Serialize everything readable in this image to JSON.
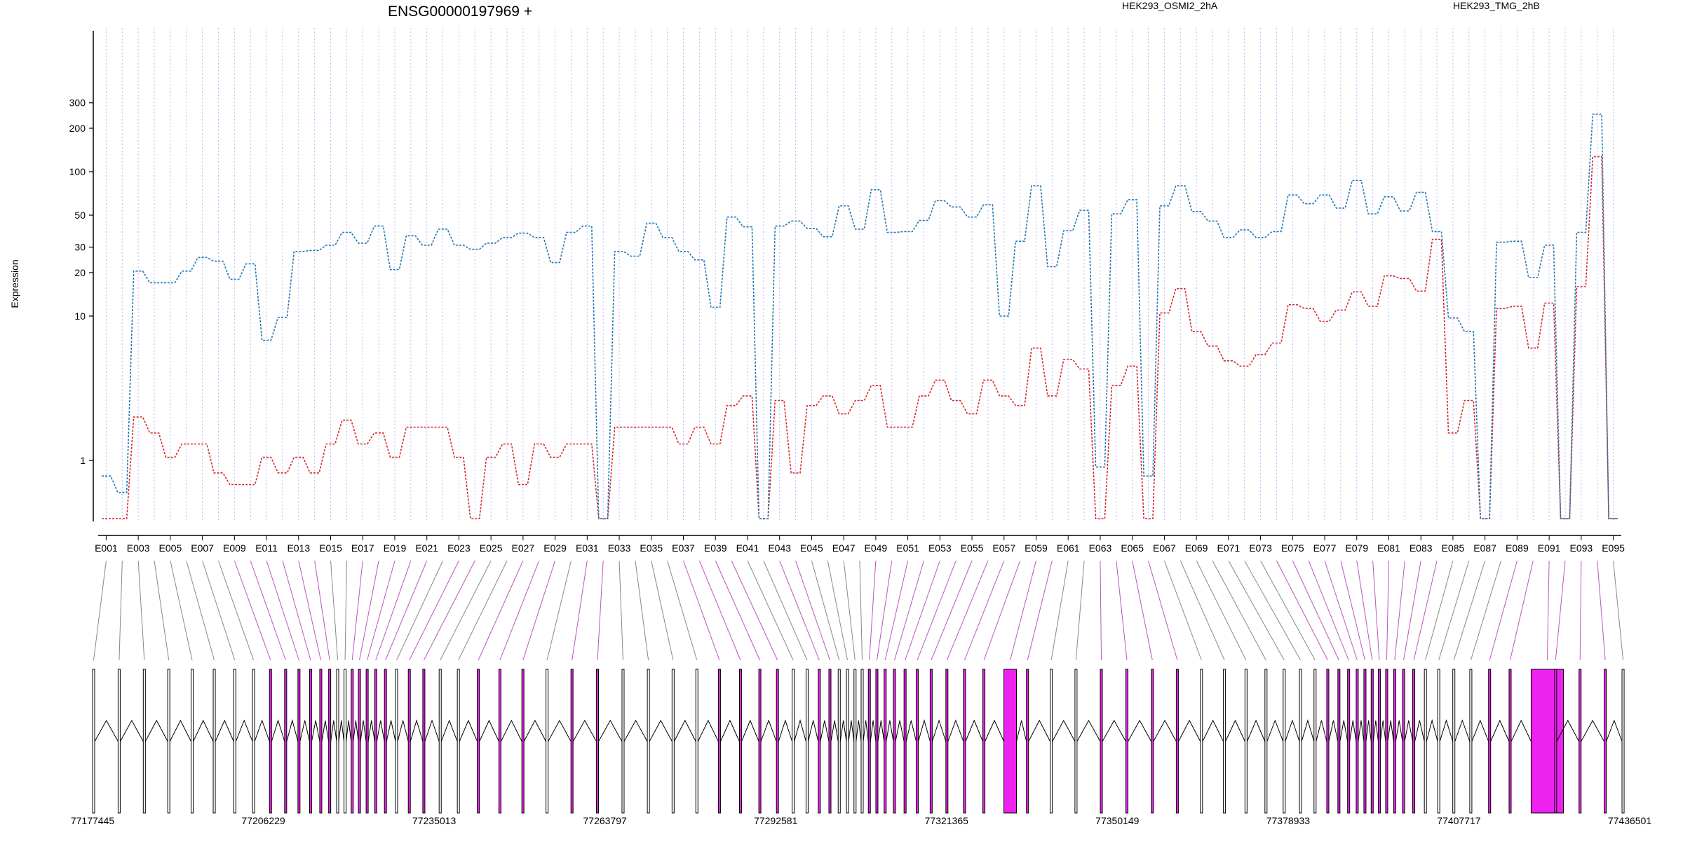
{
  "chart_data": {
    "type": "line",
    "title": "ENSG00000197969 +",
    "ylabel": "Expression",
    "xlabel": "",
    "y_scale": "log",
    "y_tick_labels": [
      "1",
      "10",
      "20",
      "30",
      "50",
      "100",
      "200",
      "300"
    ],
    "grid": "vertical dotted lines per exon bin",
    "legend_placement": "top",
    "colors": {
      "HEK293_OSMI2_2hA": "#d62728",
      "HEK293_TMG_2hB": "#1f77b4",
      "grid": "#b8b8ff",
      "highlight_exon": "#ee22ee",
      "plain_exon": "#ffffff",
      "connector_plain": "#888888",
      "connector_highlight": "#bb55bb"
    },
    "categories": [
      "E001",
      "E002",
      "E003",
      "E004",
      "E005",
      "E006",
      "E007",
      "E008",
      "E009",
      "E010",
      "E011",
      "E012",
      "E013",
      "E014",
      "E015",
      "E016",
      "E017",
      "E018",
      "E019",
      "E020",
      "E021",
      "E022",
      "E023",
      "E024",
      "E025",
      "E026",
      "E027",
      "E028",
      "E029",
      "E030",
      "E031",
      "E032",
      "E033",
      "E034",
      "E035",
      "E036",
      "E037",
      "E038",
      "E039",
      "E040",
      "E041",
      "E042",
      "E043",
      "E044",
      "E045",
      "E046",
      "E047",
      "E048",
      "E049",
      "E050",
      "E051",
      "E052",
      "E053",
      "E054",
      "E055",
      "E056",
      "E057",
      "E058",
      "E059",
      "E060",
      "E061",
      "E062",
      "E063",
      "E064",
      "E065",
      "E066",
      "E067",
      "E068",
      "E069",
      "E070",
      "E071",
      "E072",
      "E073",
      "E074",
      "E075",
      "E076",
      "E077",
      "E078",
      "E079",
      "E080",
      "E081",
      "E082",
      "E083",
      "E084",
      "E085",
      "E086",
      "E087",
      "E088",
      "E089",
      "E090",
      "E091",
      "E092",
      "E093",
      "E094",
      "E095"
    ],
    "x_tick_labels": [
      "E001",
      "E003",
      "E005",
      "E007",
      "E009",
      "E011",
      "E013",
      "E015",
      "E017",
      "E019",
      "E021",
      "E023",
      "E025",
      "E027",
      "E029",
      "E031",
      "E033",
      "E035",
      "E037",
      "E039",
      "E041",
      "E043",
      "E045",
      "E047",
      "E049",
      "E051",
      "E053",
      "E055",
      "E057",
      "E059",
      "E061",
      "E063",
      "E065",
      "E067",
      "E069",
      "E071",
      "E073",
      "E075",
      "E077",
      "E079",
      "E081",
      "E083",
      "E085",
      "E087",
      "E089",
      "E091",
      "E093",
      "E095"
    ],
    "series": [
      {
        "name": "HEK293_OSMI2_2hA",
        "values": [
          0.4,
          0.4,
          2.0,
          1.55,
          1.05,
          1.3,
          1.3,
          0.82,
          0.68,
          0.68,
          1.05,
          0.82,
          1.05,
          0.82,
          1.3,
          1.9,
          1.3,
          1.55,
          1.05,
          1.7,
          1.7,
          1.7,
          1.05,
          0.4,
          1.05,
          1.3,
          0.68,
          1.3,
          1.05,
          1.3,
          1.3,
          0.4,
          1.7,
          1.7,
          1.7,
          1.7,
          1.3,
          1.7,
          1.3,
          2.4,
          2.8,
          0.4,
          2.6,
          0.82,
          2.4,
          2.8,
          2.1,
          2.6,
          3.3,
          1.7,
          1.7,
          2.8,
          3.6,
          2.6,
          2.1,
          3.6,
          2.8,
          2.4,
          6.0,
          2.8,
          5.0,
          4.3,
          0.4,
          3.3,
          4.5,
          0.4,
          10.5,
          15.5,
          7.8,
          6.2,
          4.9,
          4.5,
          5.4,
          6.5,
          12.0,
          11.3,
          9.2,
          11.0,
          14.7,
          11.7,
          19.0,
          18.2,
          14.9,
          34.0,
          1.55,
          2.6,
          0.4,
          11.3,
          11.7,
          6.0,
          12.3,
          0.4,
          16.0,
          127.0,
          0.4
        ]
      },
      {
        "name": "HEK293_TMG_2hB",
        "values": [
          0.78,
          0.6,
          20.5,
          17.0,
          17.0,
          20.5,
          25.5,
          24.0,
          18.0,
          23.0,
          6.8,
          9.8,
          28.0,
          28.5,
          31.0,
          38.0,
          32.0,
          42.0,
          21.0,
          36.0,
          31.0,
          40.0,
          31.0,
          29.0,
          32.0,
          35.0,
          37.5,
          35.0,
          23.5,
          38.0,
          42.0,
          0.4,
          28.0,
          26.0,
          44.0,
          35.0,
          28.0,
          24.5,
          11.5,
          48.5,
          41.5,
          0.4,
          42.0,
          45.5,
          40.5,
          35.5,
          58.0,
          40.0,
          75.0,
          38.0,
          38.5,
          46.0,
          63.0,
          57.0,
          48.5,
          59.0,
          10.0,
          33.0,
          80.0,
          22.0,
          39.0,
          54.0,
          0.9,
          51.0,
          64.0,
          0.78,
          58.0,
          80.0,
          53.0,
          45.5,
          35.0,
          39.5,
          35.0,
          38.5,
          69.0,
          60.0,
          69.0,
          56.0,
          87.0,
          51.0,
          67.0,
          53.5,
          72.0,
          38.5,
          9.7,
          7.8,
          0.4,
          32.5,
          33.0,
          18.5,
          31.0,
          0.4,
          38.0,
          250.0,
          0.4
        ]
      }
    ],
    "genomic_axis": {
      "tick_labels": [
        "77177445",
        "77206229",
        "77235013",
        "77263797",
        "77292581",
        "77321365",
        "77350149",
        "77378933",
        "77407717",
        "77436501"
      ],
      "tick_values": [
        77177445,
        77206229,
        77235013,
        77263797,
        77292581,
        77321365,
        77350149,
        77378933,
        77407717,
        77436501
      ]
    }
  }
}
